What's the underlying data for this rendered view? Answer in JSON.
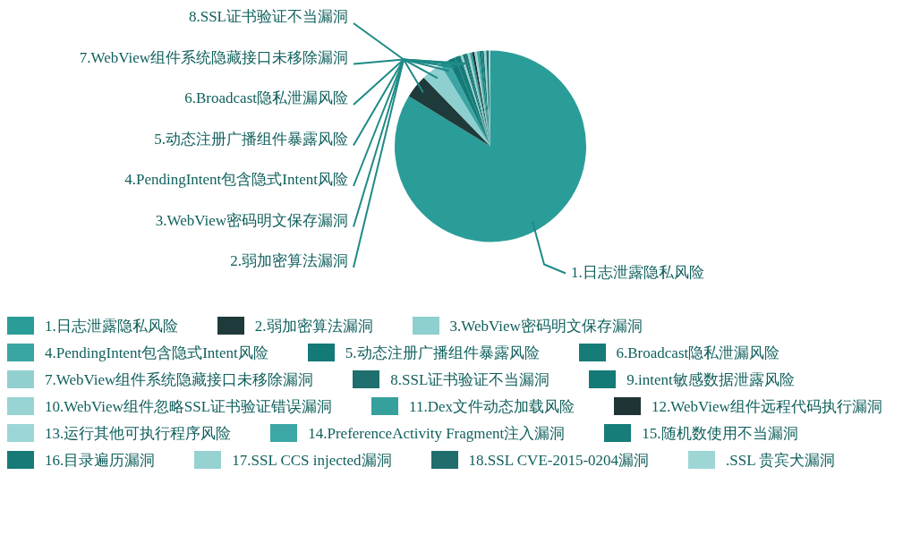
{
  "chart_data": {
    "type": "pie",
    "legend": "bottom",
    "categories": [
      "1.日志泄露隐私风险",
      "2.弱加密算法漏洞",
      "3.WebView密码明文保存漏洞",
      "4.PendingIntent包含隐式Intent风险",
      "5.动态注册广播组件暴露风险",
      "6.Broadcast隐私泄漏风险",
      "7.WebView组件系统隐藏接口未移除漏洞",
      "8.SSL证书验证不当漏洞",
      "9.intent敏感数据泄露风险",
      "10.WebView组件忽略SSL证书验证错误漏洞",
      "11.Dex文件动态加载风险",
      "12.WebView组件远程代码执行漏洞",
      "13.运行其他可执行程序风险",
      "14.PreferenceActivity Fragment注入漏洞",
      "15.随机数使用不当漏洞",
      "16.目录遍历漏洞",
      "17.SSL CCS injected漏洞",
      "18.SSL CVE-2015-0204漏洞",
      ".SSL 贵宾犬漏洞"
    ],
    "values": [
      84.1,
      4,
      3.5,
      1.5,
      1.2,
      1,
      0.4,
      0.4,
      0.4,
      0.4,
      0.4,
      0.4,
      0.4,
      0.4,
      0.4,
      0.4,
      0.4,
      0.4,
      0.3
    ],
    "colors": [
      "#2a9d98",
      "#1f3a3a",
      "#8ecfcf",
      "#3aa5a3",
      "#137a78",
      "#167c78",
      "#92d0d0",
      "#1e6f6e",
      "#137a76",
      "#98d4d4",
      "#35a09c",
      "#1f3535",
      "#9dd6d6",
      "#3ca7a4",
      "#177d79",
      "#187a77",
      "#96d2d2",
      "#1f6d6c",
      "#9ed6d6"
    ],
    "annotations": [
      {
        "text": "1.日志泄露隐私风险",
        "x": "1.日志泄露隐私风险"
      },
      {
        "text": "2.弱加密算法漏洞",
        "x": "2.弱加密算法漏洞"
      },
      {
        "text": "3.WebView密码明文保存漏洞",
        "x": "3.WebView密码明文保存漏洞"
      },
      {
        "text": "4.PendingIntent包含隐式Intent风险",
        "x": "4.PendingIntent包含隐式Intent风险"
      },
      {
        "text": "5.动态注册广播组件暴露风险",
        "x": "5.动态注册广播组件暴露风险"
      },
      {
        "text": "6.Broadcast隐私泄漏风险",
        "x": "6.Broadcast隐私泄漏风险"
      },
      {
        "text": "7.WebView组件系统隐藏接口未移除漏洞",
        "x": "7.WebView组件系统隐藏接口未移除漏洞"
      },
      {
        "text": "8.SSL证书验证不当漏洞",
        "x": "8.SSL证书验证不当漏洞"
      }
    ]
  }
}
